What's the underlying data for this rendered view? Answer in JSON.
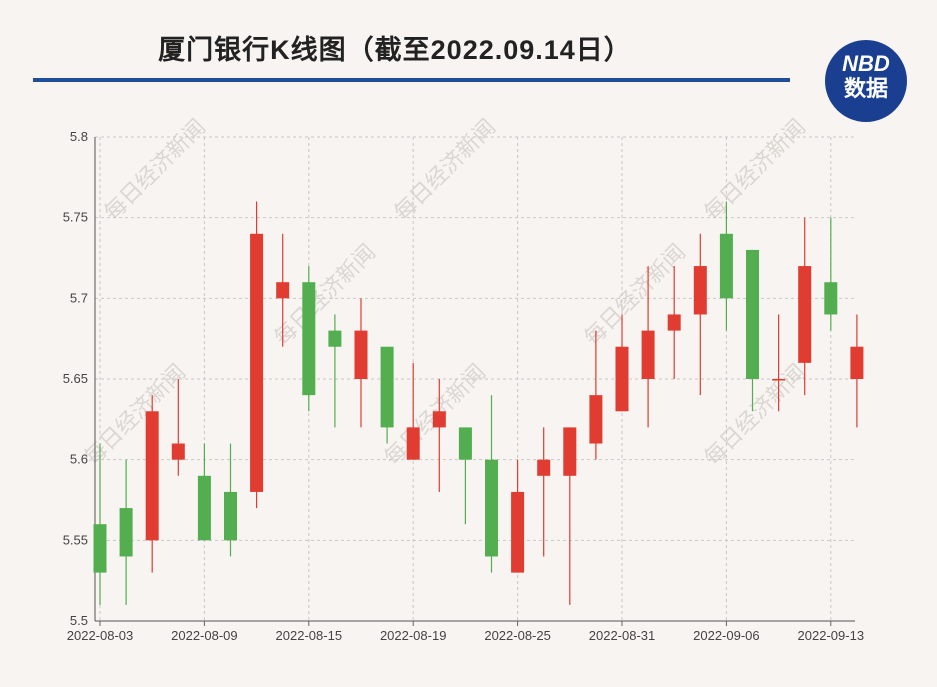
{
  "title": "厦门银行K线图（截至2022.09.14日）",
  "logo": {
    "line1": "NBD",
    "line2": "数据"
  },
  "watermark": "每日经济新闻",
  "colors": {
    "up": "#e03c31",
    "down": "#52ae4f",
    "grid": "#c8c8c8",
    "rule": "#1f4e99"
  },
  "chart_data": {
    "type": "candlestick",
    "title": "厦门银行K线图（截至2022.09.14日）",
    "ylim": [
      5.5,
      5.8
    ],
    "yticks": [
      "5.5",
      "5.55",
      "5.6",
      "5.65",
      "5.7",
      "5.75",
      "5.8"
    ],
    "xtick_labels": [
      "2022-08-03",
      "2022-08-09",
      "2022-08-15",
      "2022-08-19",
      "2022-08-25",
      "2022-08-31",
      "2022-09-06",
      "2022-09-13"
    ],
    "xtick_indices": [
      0,
      4,
      8,
      12,
      16,
      20,
      24,
      28
    ],
    "grid": true,
    "candles": [
      {
        "o": 5.56,
        "c": 5.53,
        "h": 5.61,
        "l": 5.51
      },
      {
        "o": 5.57,
        "c": 5.54,
        "h": 5.6,
        "l": 5.51
      },
      {
        "o": 5.55,
        "c": 5.63,
        "h": 5.64,
        "l": 5.53
      },
      {
        "o": 5.6,
        "c": 5.61,
        "h": 5.65,
        "l": 5.59
      },
      {
        "o": 5.59,
        "c": 5.55,
        "h": 5.61,
        "l": 5.55
      },
      {
        "o": 5.58,
        "c": 5.55,
        "h": 5.61,
        "l": 5.54
      },
      {
        "o": 5.58,
        "c": 5.74,
        "h": 5.76,
        "l": 5.57
      },
      {
        "o": 5.7,
        "c": 5.71,
        "h": 5.74,
        "l": 5.67
      },
      {
        "o": 5.71,
        "c": 5.64,
        "h": 5.72,
        "l": 5.63
      },
      {
        "o": 5.68,
        "c": 5.67,
        "h": 5.69,
        "l": 5.62
      },
      {
        "o": 5.65,
        "c": 5.68,
        "h": 5.7,
        "l": 5.62
      },
      {
        "o": 5.67,
        "c": 5.62,
        "h": 5.67,
        "l": 5.61
      },
      {
        "o": 5.6,
        "c": 5.62,
        "h": 5.66,
        "l": 5.6
      },
      {
        "o": 5.62,
        "c": 5.63,
        "h": 5.65,
        "l": 5.58
      },
      {
        "o": 5.62,
        "c": 5.6,
        "h": 5.62,
        "l": 5.56
      },
      {
        "o": 5.6,
        "c": 5.54,
        "h": 5.64,
        "l": 5.53
      },
      {
        "o": 5.53,
        "c": 5.58,
        "h": 5.6,
        "l": 5.53
      },
      {
        "o": 5.59,
        "c": 5.6,
        "h": 5.62,
        "l": 5.54
      },
      {
        "o": 5.59,
        "c": 5.62,
        "h": 5.62,
        "l": 5.51
      },
      {
        "o": 5.61,
        "c": 5.64,
        "h": 5.68,
        "l": 5.6
      },
      {
        "o": 5.63,
        "c": 5.67,
        "h": 5.69,
        "l": 5.63
      },
      {
        "o": 5.65,
        "c": 5.68,
        "h": 5.72,
        "l": 5.62
      },
      {
        "o": 5.68,
        "c": 5.69,
        "h": 5.72,
        "l": 5.65
      },
      {
        "o": 5.69,
        "c": 5.72,
        "h": 5.74,
        "l": 5.64
      },
      {
        "o": 5.74,
        "c": 5.7,
        "h": 5.76,
        "l": 5.68
      },
      {
        "o": 5.73,
        "c": 5.65,
        "h": 5.73,
        "l": 5.63
      },
      {
        "o": 5.65,
        "c": 5.65,
        "h": 5.69,
        "l": 5.63
      },
      {
        "o": 5.66,
        "c": 5.72,
        "h": 5.75,
        "l": 5.64
      },
      {
        "o": 5.71,
        "c": 5.69,
        "h": 5.75,
        "l": 5.68
      },
      {
        "o": 5.65,
        "c": 5.67,
        "h": 5.69,
        "l": 5.62
      }
    ]
  }
}
